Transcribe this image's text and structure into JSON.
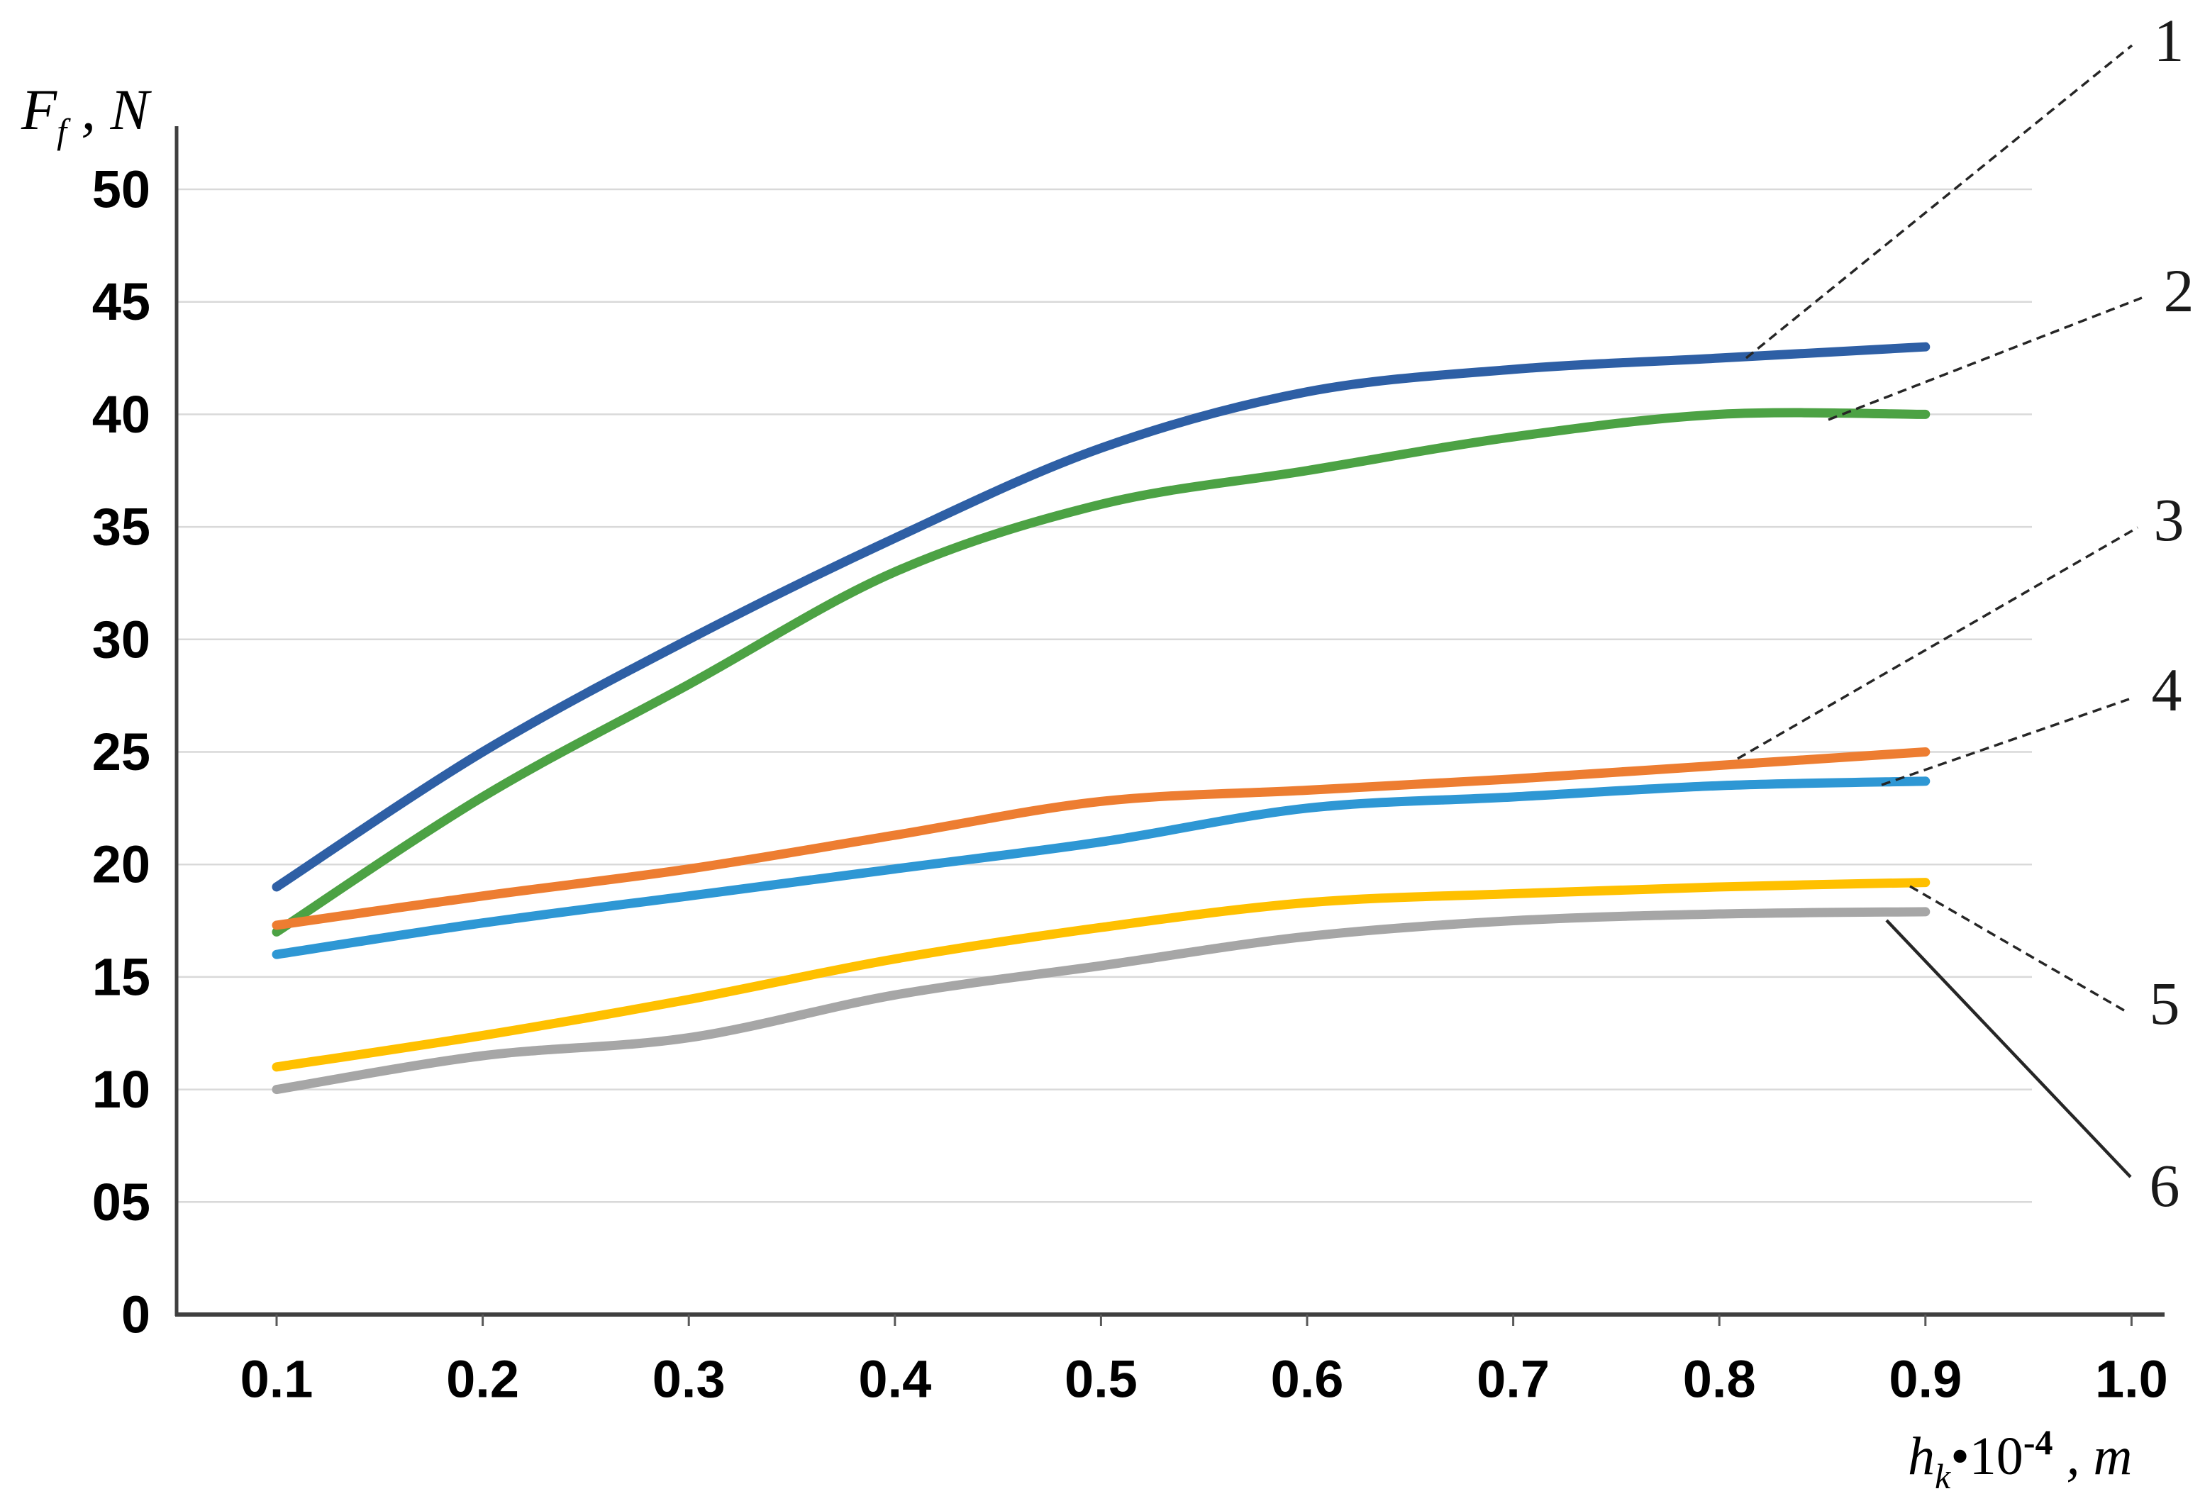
{
  "chart_data": {
    "type": "line",
    "title": "",
    "ylabel": "F_f, N",
    "xlabel": "h_k*10^-4, m",
    "x": [
      0.1,
      0.2,
      0.3,
      0.4,
      0.5,
      0.6,
      0.7,
      0.8,
      0.9
    ],
    "series": [
      {
        "name": "1",
        "color": "#2E5FA5",
        "values": [
          19,
          25,
          30,
          34.5,
          38.5,
          41,
          42,
          42.5,
          43
        ]
      },
      {
        "name": "2",
        "color": "#4CA244",
        "values": [
          17,
          23,
          28,
          33,
          36,
          37.5,
          39,
          40,
          40
        ]
      },
      {
        "name": "3",
        "color": "#ED7D31",
        "values": [
          17.3,
          18.6,
          19.8,
          21.3,
          22.8,
          23.3,
          23.8,
          24.4,
          25
        ]
      },
      {
        "name": "4",
        "color": "#2E97D4",
        "values": [
          16,
          17.4,
          18.6,
          19.8,
          21,
          22.5,
          23,
          23.5,
          23.7
        ]
      },
      {
        "name": "5",
        "color": "#FFC000",
        "values": [
          11,
          12.4,
          14,
          15.8,
          17.2,
          18.3,
          18.7,
          19,
          19.2
        ]
      },
      {
        "name": "6",
        "color": "#A6A6A6",
        "values": [
          10,
          11.5,
          12.3,
          14.2,
          15.5,
          16.8,
          17.5,
          17.8,
          17.9
        ]
      }
    ],
    "xlim": [
      0.05,
      1.05
    ],
    "ylim": [
      0,
      50
    ],
    "grid": true,
    "legend_position": "right-numbered-callouts",
    "x_ticks": {
      "values": [
        0.1,
        0.2,
        0.3,
        0.4,
        0.5,
        0.6,
        0.7,
        0.8,
        0.9,
        1.0
      ],
      "labels": [
        "0.1",
        "0.2",
        "0.3",
        "0.4",
        "0.5",
        "0.6",
        "0.7",
        "0.8",
        "0.9",
        "1.0"
      ]
    },
    "y_ticks": {
      "values": [
        0,
        5,
        10,
        15,
        20,
        25,
        30,
        35,
        40,
        45,
        50
      ],
      "labels": [
        "0",
        "05",
        "10",
        "15",
        "20",
        "25",
        "30",
        "35",
        "40",
        "45",
        "50"
      ]
    }
  },
  "labels": {
    "y_axis_title": {
      "sym": "F",
      "sub": "f",
      "rest": " , N"
    },
    "x_axis_title": {
      "sym": "h",
      "sub": "k",
      "mul": "•10",
      "sup": "-4",
      "rest": " , m"
    }
  },
  "annotations": [
    {
      "text": "1",
      "series": "1"
    },
    {
      "text": "2",
      "series": "2"
    },
    {
      "text": "3",
      "series": "3"
    },
    {
      "text": "4",
      "series": "4"
    },
    {
      "text": "5",
      "series": "5"
    },
    {
      "text": "6",
      "series": "6"
    }
  ],
  "colors": {
    "background": "#FFFFFF",
    "axis": "#3F3F3F",
    "gridline": "#D9D9D9",
    "tick_text": "#000000",
    "callout_line": "#262626"
  }
}
